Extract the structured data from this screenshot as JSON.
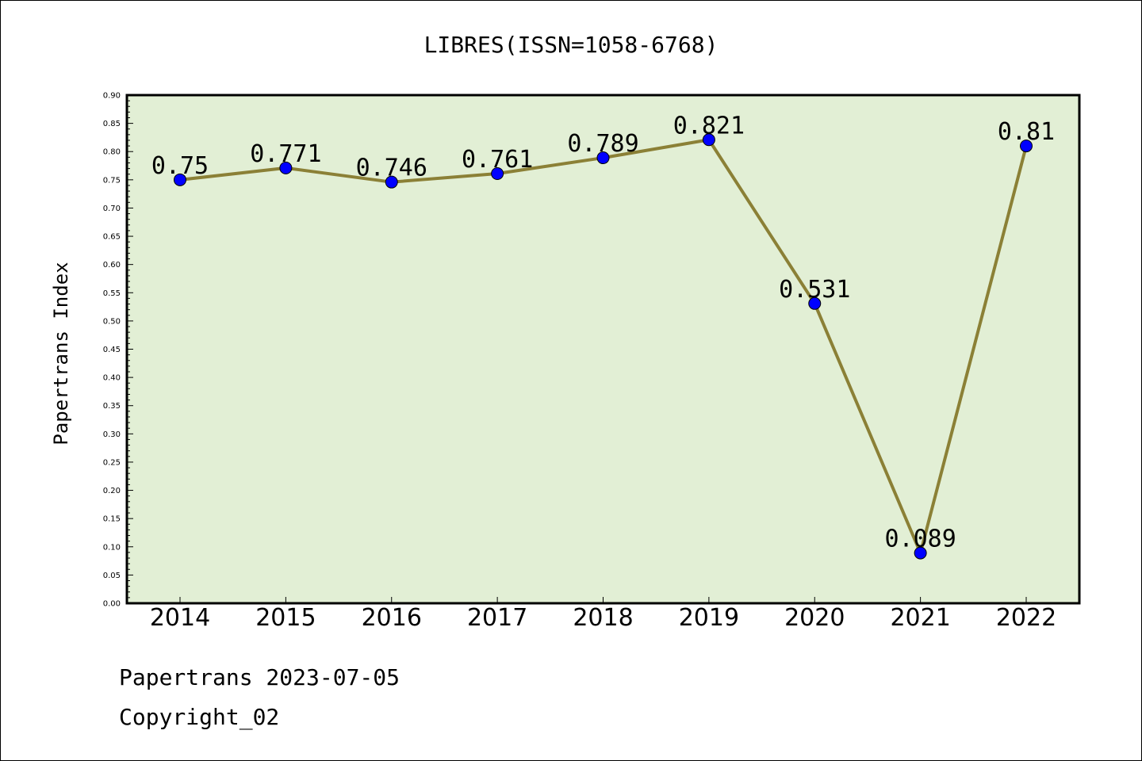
{
  "chart_data": {
    "type": "line",
    "title": "LIBRES(ISSN=1058-6768)",
    "xlabel": "",
    "ylabel": "Papertrans Index",
    "categories": [
      "2014",
      "2015",
      "2016",
      "2017",
      "2018",
      "2019",
      "2020",
      "2021",
      "2022"
    ],
    "values": [
      0.75,
      0.771,
      0.746,
      0.761,
      0.789,
      0.821,
      0.531,
      0.089,
      0.81
    ],
    "data_labels": [
      "0.75",
      "0.771",
      "0.746",
      "0.761",
      "0.789",
      "0.821",
      "0.531",
      "0.089",
      "0.81"
    ],
    "ylim": [
      0,
      0.9
    ],
    "ytick_labels": [
      "0.00",
      "0.05",
      "0.10",
      "0.15",
      "0.20",
      "0.25",
      "0.30",
      "0.35",
      "0.40",
      "0.45",
      "0.50",
      "0.55",
      "0.60",
      "0.65",
      "0.70",
      "0.75",
      "0.80",
      "0.85",
      "0.90"
    ],
    "grid": false,
    "colors": {
      "line": "#8b8036",
      "marker": "#0000ff",
      "plot_background": "#e2efd5"
    }
  },
  "footer": {
    "credit": "Papertrans 2023-07-05",
    "copyright": "Copyright_02"
  }
}
